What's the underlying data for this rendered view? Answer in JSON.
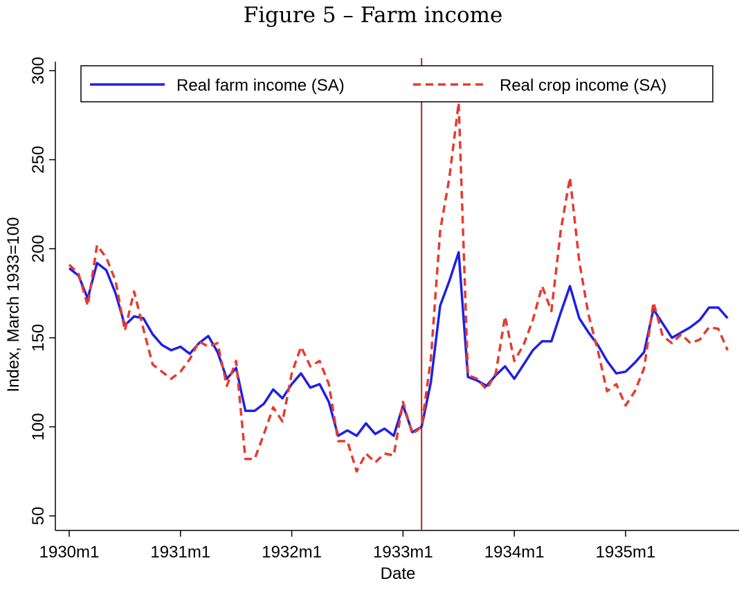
{
  "title": "Figure 5 – Farm income",
  "chart_data": {
    "type": "line",
    "xlabel": "Date",
    "ylabel": "Index, March 1933=100",
    "x_start": "1930m1",
    "x_end": "1935m12",
    "xticks": [
      "1930m1",
      "1931m1",
      "1932m1",
      "1933m1",
      "1934m1",
      "1935m1"
    ],
    "yticks": [
      50,
      100,
      150,
      200,
      250,
      300
    ],
    "ylim": [
      45,
      305
    ],
    "grid": false,
    "legend_position": "top",
    "reference_line": {
      "date": "1933m3"
    },
    "series": [
      {
        "name": "Real farm income (SA)",
        "color": "#1f1fe6",
        "style": "solid",
        "values": [
          189,
          185,
          172,
          192,
          188,
          175,
          157,
          162,
          161,
          152,
          146,
          143,
          145,
          141,
          147,
          151,
          142,
          127,
          133,
          109,
          109,
          113,
          121,
          116,
          124,
          130,
          122,
          124,
          114,
          95,
          98,
          95,
          102,
          96,
          99,
          95,
          112,
          97,
          100,
          125,
          168,
          182,
          198,
          128,
          126,
          123,
          129,
          134,
          127,
          135,
          143,
          148,
          148,
          164,
          179,
          161,
          153,
          146,
          137,
          130,
          131,
          136,
          142,
          166,
          158,
          150,
          153,
          156,
          160,
          167,
          167,
          161
        ]
      },
      {
        "name": "Real crop income (SA)",
        "color": "#e63b2e",
        "style": "dashed",
        "values": [
          191,
          186,
          168,
          202,
          195,
          182,
          154,
          176,
          155,
          135,
          131,
          127,
          131,
          138,
          148,
          145,
          147,
          123,
          137,
          82,
          82,
          96,
          111,
          103,
          130,
          145,
          134,
          137,
          124,
          92,
          92,
          75,
          85,
          80,
          85,
          84,
          114,
          96,
          100,
          138,
          210,
          240,
          282,
          129,
          127,
          121,
          130,
          162,
          137,
          146,
          160,
          179,
          165,
          210,
          240,
          193,
          163,
          143,
          120,
          124,
          112,
          120,
          133,
          170,
          151,
          147,
          152,
          147,
          149,
          156,
          155,
          143
        ]
      }
    ]
  }
}
